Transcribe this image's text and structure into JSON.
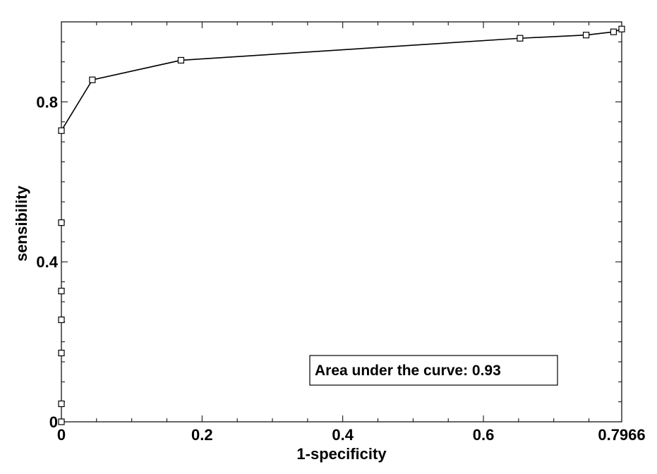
{
  "chart_data": {
    "type": "line",
    "title": "",
    "xlabel": "1-specificity",
    "ylabel": "sensibility",
    "xlim": [
      0,
      0.7966
    ],
    "ylim": [
      0,
      1.0
    ],
    "x_ticks": [
      {
        "value": 0,
        "label": "0"
      },
      {
        "value": 0.2,
        "label": "0.2"
      },
      {
        "value": 0.4,
        "label": "0.4"
      },
      {
        "value": 0.6,
        "label": "0.6"
      },
      {
        "value": 0.7966,
        "label": "0.7966"
      }
    ],
    "y_ticks": [
      {
        "value": 0,
        "label": "0"
      },
      {
        "value": 0.4,
        "label": "0.4"
      },
      {
        "value": 0.8,
        "label": "0.8"
      }
    ],
    "grid": false,
    "series": [
      {
        "points": [
          {
            "x": 0,
            "y": 0.0
          },
          {
            "x": 0,
            "y": 0.045
          },
          {
            "x": 0,
            "y": 0.172
          },
          {
            "x": 0,
            "y": 0.255
          },
          {
            "x": 0,
            "y": 0.327
          },
          {
            "x": 0,
            "y": 0.498
          },
          {
            "x": 0,
            "y": 0.728
          },
          {
            "x": 0.044,
            "y": 0.855
          },
          {
            "x": 0.17,
            "y": 0.904
          },
          {
            "x": 0.652,
            "y": 0.959
          },
          {
            "x": 0.746,
            "y": 0.967
          },
          {
            "x": 0.785,
            "y": 0.975
          },
          {
            "x": 0.7966,
            "y": 0.982
          }
        ],
        "line_points": [
          {
            "x": 0,
            "y": 0.728
          },
          {
            "x": 0.044,
            "y": 0.855
          },
          {
            "x": 0.17,
            "y": 0.904
          },
          {
            "x": 0.652,
            "y": 0.959
          },
          {
            "x": 0.746,
            "y": 0.967
          },
          {
            "x": 0.785,
            "y": 0.975
          },
          {
            "x": 0.7966,
            "y": 0.982
          }
        ],
        "marker": "square",
        "color": "#000000"
      }
    ],
    "annotations": [
      {
        "text": "Area under the curve: 0.93"
      }
    ]
  }
}
